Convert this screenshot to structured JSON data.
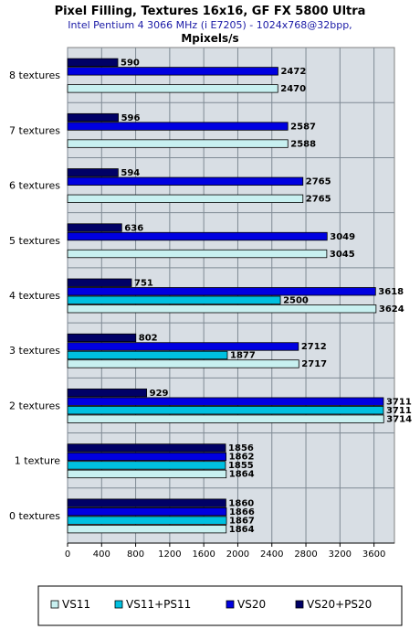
{
  "chart_data": {
    "type": "bar",
    "orientation": "horizontal",
    "title": "Pixel Filling, Textures 16x16, GF FX 5800 Ultra",
    "subtitle": "Intel Pentium 4 3066 MHz (i E7205) - 1024x768@32bpp,",
    "units": "Mpixels/s",
    "categories": [
      "8 textures",
      "7 textures",
      "6 textures",
      "5 textures",
      "4 textures",
      "3 textures",
      "2 textures",
      "1 texture",
      "0 textures"
    ],
    "xlim": [
      0,
      3840
    ],
    "xticks": [
      0,
      400,
      800,
      1200,
      1600,
      2000,
      2400,
      2800,
      3200,
      3600
    ],
    "grid": true,
    "legend_position": "bottom",
    "series": [
      {
        "name": "VS20+PS20",
        "color": "#000066",
        "values": [
          590,
          596,
          594,
          636,
          751,
          802,
          929,
          1856,
          1860
        ]
      },
      {
        "name": "VS20",
        "color": "#0000e0",
        "values": [
          2472,
          2587,
          2765,
          3049,
          3618,
          2712,
          3711,
          1862,
          1866
        ]
      },
      {
        "name": "VS11+PS11",
        "color": "#00c0e0",
        "values": [
          null,
          null,
          null,
          null,
          2500,
          1877,
          3711,
          1855,
          1867
        ]
      },
      {
        "name": "VS11",
        "color": "#c8f0f0",
        "values": [
          2470,
          2588,
          2765,
          3045,
          3624,
          2717,
          3714,
          1864,
          1864
        ]
      }
    ],
    "legend_order": [
      "VS11",
      "VS11+PS11",
      "VS20",
      "VS20+PS20"
    ]
  }
}
